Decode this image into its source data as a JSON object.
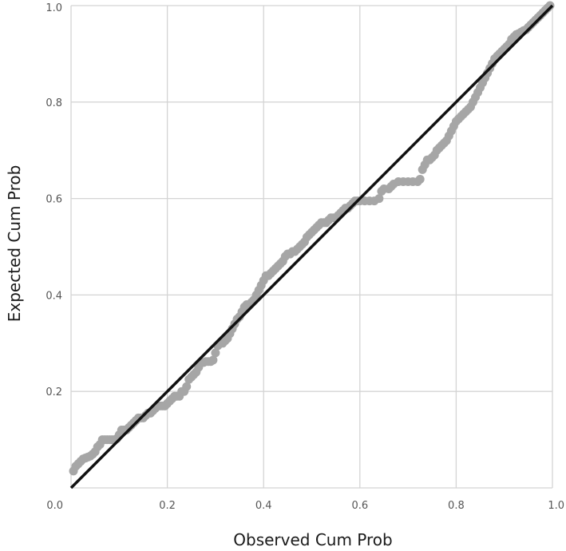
{
  "chart_data": {
    "type": "scatter",
    "xlabel": "Observed Cum Prob",
    "ylabel": "Expected Cum Prob",
    "xlim": [
      0.0,
      1.0
    ],
    "ylim": [
      0.0,
      1.0
    ],
    "x_ticks": [
      "0.0",
      "0.2",
      "0.4",
      "0.6",
      "0.8",
      "1.0"
    ],
    "y_ticks": [
      "0.0",
      "0.2",
      "0.4",
      "0.6",
      "0.8",
      "1.0"
    ],
    "grid": true,
    "legend": "none",
    "point_color": "#a6a6a6",
    "reference_line": {
      "from": [
        0.0,
        0.0
      ],
      "to": [
        1.0,
        1.0
      ],
      "color": "#111111"
    },
    "points": [
      [
        0.005,
        0.035
      ],
      [
        0.01,
        0.045
      ],
      [
        0.015,
        0.05
      ],
      [
        0.02,
        0.055
      ],
      [
        0.025,
        0.06
      ],
      [
        0.03,
        0.062
      ],
      [
        0.035,
        0.064
      ],
      [
        0.04,
        0.066
      ],
      [
        0.045,
        0.07
      ],
      [
        0.05,
        0.075
      ],
      [
        0.055,
        0.085
      ],
      [
        0.06,
        0.09
      ],
      [
        0.065,
        0.1
      ],
      [
        0.07,
        0.1
      ],
      [
        0.075,
        0.1
      ],
      [
        0.08,
        0.1
      ],
      [
        0.085,
        0.1
      ],
      [
        0.09,
        0.1
      ],
      [
        0.095,
        0.102
      ],
      [
        0.1,
        0.11
      ],
      [
        0.105,
        0.12
      ],
      [
        0.11,
        0.12
      ],
      [
        0.115,
        0.12
      ],
      [
        0.12,
        0.125
      ],
      [
        0.125,
        0.13
      ],
      [
        0.13,
        0.135
      ],
      [
        0.135,
        0.14
      ],
      [
        0.14,
        0.145
      ],
      [
        0.145,
        0.145
      ],
      [
        0.15,
        0.145
      ],
      [
        0.155,
        0.15
      ],
      [
        0.16,
        0.155
      ],
      [
        0.165,
        0.155
      ],
      [
        0.17,
        0.16
      ],
      [
        0.175,
        0.165
      ],
      [
        0.18,
        0.17
      ],
      [
        0.185,
        0.17
      ],
      [
        0.19,
        0.17
      ],
      [
        0.195,
        0.17
      ],
      [
        0.2,
        0.175
      ],
      [
        0.205,
        0.18
      ],
      [
        0.21,
        0.185
      ],
      [
        0.215,
        0.19
      ],
      [
        0.22,
        0.19
      ],
      [
        0.225,
        0.19
      ],
      [
        0.23,
        0.2
      ],
      [
        0.235,
        0.2
      ],
      [
        0.24,
        0.21
      ],
      [
        0.245,
        0.225
      ],
      [
        0.25,
        0.23
      ],
      [
        0.255,
        0.235
      ],
      [
        0.26,
        0.24
      ],
      [
        0.265,
        0.25
      ],
      [
        0.27,
        0.26
      ],
      [
        0.275,
        0.26
      ],
      [
        0.28,
        0.262
      ],
      [
        0.285,
        0.262
      ],
      [
        0.29,
        0.262
      ],
      [
        0.295,
        0.265
      ],
      [
        0.3,
        0.28
      ],
      [
        0.305,
        0.295
      ],
      [
        0.31,
        0.3
      ],
      [
        0.315,
        0.3
      ],
      [
        0.32,
        0.305
      ],
      [
        0.325,
        0.31
      ],
      [
        0.33,
        0.32
      ],
      [
        0.335,
        0.33
      ],
      [
        0.34,
        0.34
      ],
      [
        0.345,
        0.35
      ],
      [
        0.35,
        0.355
      ],
      [
        0.355,
        0.365
      ],
      [
        0.36,
        0.375
      ],
      [
        0.365,
        0.38
      ],
      [
        0.37,
        0.38
      ],
      [
        0.375,
        0.385
      ],
      [
        0.38,
        0.39
      ],
      [
        0.385,
        0.4
      ],
      [
        0.39,
        0.41
      ],
      [
        0.395,
        0.42
      ],
      [
        0.4,
        0.43
      ],
      [
        0.405,
        0.44
      ],
      [
        0.41,
        0.44
      ],
      [
        0.415,
        0.445
      ],
      [
        0.42,
        0.45
      ],
      [
        0.425,
        0.455
      ],
      [
        0.43,
        0.46
      ],
      [
        0.435,
        0.465
      ],
      [
        0.44,
        0.47
      ],
      [
        0.445,
        0.48
      ],
      [
        0.45,
        0.485
      ],
      [
        0.455,
        0.485
      ],
      [
        0.46,
        0.49
      ],
      [
        0.465,
        0.49
      ],
      [
        0.47,
        0.495
      ],
      [
        0.475,
        0.5
      ],
      [
        0.48,
        0.505
      ],
      [
        0.485,
        0.51
      ],
      [
        0.49,
        0.52
      ],
      [
        0.495,
        0.525
      ],
      [
        0.5,
        0.53
      ],
      [
        0.505,
        0.535
      ],
      [
        0.51,
        0.54
      ],
      [
        0.515,
        0.545
      ],
      [
        0.52,
        0.55
      ],
      [
        0.525,
        0.55
      ],
      [
        0.53,
        0.55
      ],
      [
        0.535,
        0.555
      ],
      [
        0.54,
        0.56
      ],
      [
        0.545,
        0.56
      ],
      [
        0.55,
        0.56
      ],
      [
        0.555,
        0.565
      ],
      [
        0.56,
        0.57
      ],
      [
        0.565,
        0.575
      ],
      [
        0.57,
        0.58
      ],
      [
        0.575,
        0.58
      ],
      [
        0.58,
        0.585
      ],
      [
        0.585,
        0.59
      ],
      [
        0.59,
        0.595
      ],
      [
        0.595,
        0.595
      ],
      [
        0.6,
        0.595
      ],
      [
        0.61,
        0.595
      ],
      [
        0.62,
        0.595
      ],
      [
        0.63,
        0.595
      ],
      [
        0.64,
        0.6
      ],
      [
        0.645,
        0.615
      ],
      [
        0.65,
        0.62
      ],
      [
        0.66,
        0.62
      ],
      [
        0.665,
        0.625
      ],
      [
        0.67,
        0.63
      ],
      [
        0.68,
        0.635
      ],
      [
        0.69,
        0.635
      ],
      [
        0.7,
        0.635
      ],
      [
        0.71,
        0.635
      ],
      [
        0.72,
        0.635
      ],
      [
        0.725,
        0.64
      ],
      [
        0.73,
        0.66
      ],
      [
        0.735,
        0.67
      ],
      [
        0.74,
        0.68
      ],
      [
        0.745,
        0.68
      ],
      [
        0.75,
        0.685
      ],
      [
        0.755,
        0.69
      ],
      [
        0.76,
        0.7
      ],
      [
        0.765,
        0.705
      ],
      [
        0.77,
        0.71
      ],
      [
        0.775,
        0.715
      ],
      [
        0.78,
        0.72
      ],
      [
        0.785,
        0.73
      ],
      [
        0.79,
        0.74
      ],
      [
        0.795,
        0.75
      ],
      [
        0.8,
        0.76
      ],
      [
        0.805,
        0.765
      ],
      [
        0.81,
        0.77
      ],
      [
        0.815,
        0.775
      ],
      [
        0.82,
        0.78
      ],
      [
        0.825,
        0.785
      ],
      [
        0.83,
        0.79
      ],
      [
        0.835,
        0.8
      ],
      [
        0.84,
        0.81
      ],
      [
        0.845,
        0.82
      ],
      [
        0.85,
        0.83
      ],
      [
        0.855,
        0.84
      ],
      [
        0.86,
        0.85
      ],
      [
        0.865,
        0.86
      ],
      [
        0.87,
        0.87
      ],
      [
        0.875,
        0.88
      ],
      [
        0.88,
        0.89
      ],
      [
        0.885,
        0.895
      ],
      [
        0.89,
        0.9
      ],
      [
        0.895,
        0.905
      ],
      [
        0.9,
        0.91
      ],
      [
        0.905,
        0.915
      ],
      [
        0.91,
        0.92
      ],
      [
        0.915,
        0.93
      ],
      [
        0.92,
        0.935
      ],
      [
        0.925,
        0.94
      ],
      [
        0.93,
        0.942
      ],
      [
        0.935,
        0.945
      ],
      [
        0.94,
        0.948
      ],
      [
        0.945,
        0.95
      ],
      [
        0.95,
        0.955
      ],
      [
        0.955,
        0.96
      ],
      [
        0.96,
        0.965
      ],
      [
        0.965,
        0.97
      ],
      [
        0.97,
        0.975
      ],
      [
        0.975,
        0.98
      ],
      [
        0.98,
        0.985
      ],
      [
        0.985,
        0.99
      ],
      [
        0.99,
        0.995
      ],
      [
        0.995,
        1.0
      ]
    ]
  }
}
